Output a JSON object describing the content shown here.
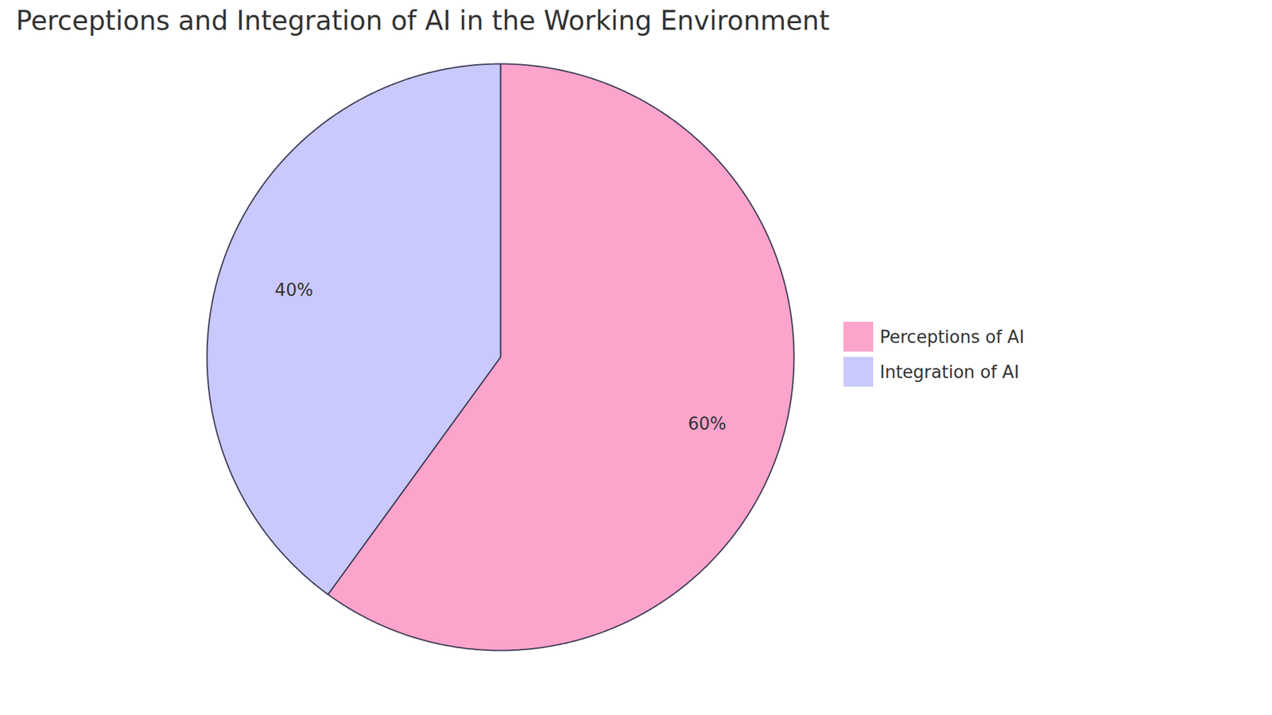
{
  "chart_data": {
    "type": "pie",
    "title": "Perceptions and Integration of AI in the Working Environment",
    "categories": [
      "Perceptions of AI",
      "Integration of AI"
    ],
    "values": [
      60,
      40
    ],
    "value_labels": [
      "60%",
      "40%"
    ],
    "colors": [
      "#fda4cd",
      "#c9c9fd"
    ],
    "data_labels": true,
    "legend": "right"
  }
}
